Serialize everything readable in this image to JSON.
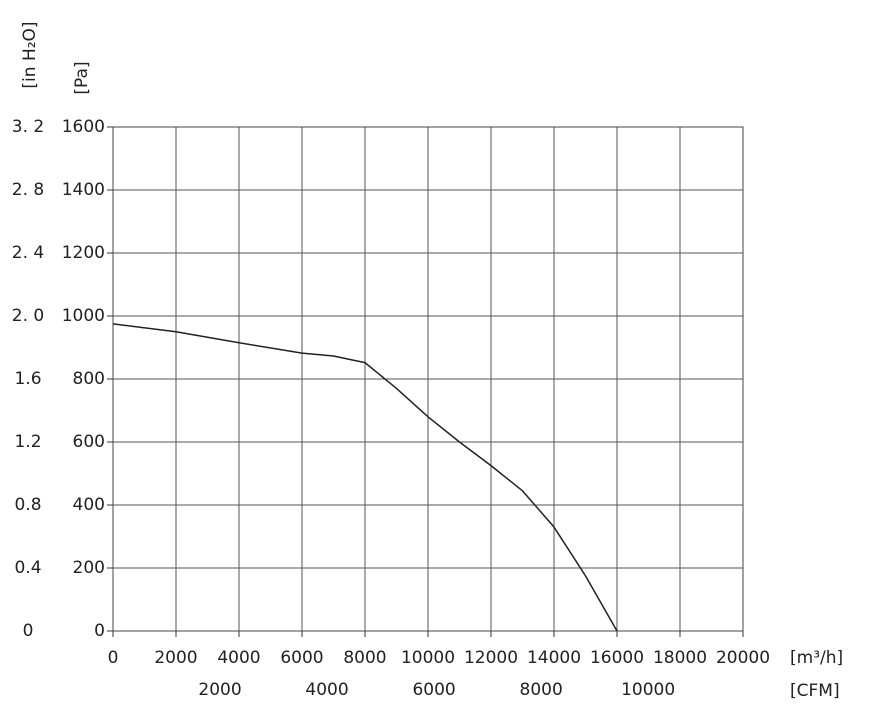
{
  "chart_data": {
    "type": "line",
    "x": [
      0,
      2000,
      4000,
      6000,
      7000,
      8000,
      9000,
      10000,
      11000,
      12000,
      13000,
      14000,
      15000,
      16000
    ],
    "series": [
      {
        "color": "#222222",
        "values": [
          975,
          950,
          915,
          882,
          873,
          852,
          770,
          680,
          600,
          525,
          445,
          330,
          175,
          0
        ]
      }
    ],
    "xlabel": "[m³/h]",
    "ylabel": "[Pa]",
    "x2label": "[CFM]",
    "y2label": "[in H₂O]",
    "xlim": [
      0,
      20000
    ],
    "xticks": [
      0,
      2000,
      4000,
      6000,
      8000,
      10000,
      12000,
      14000,
      16000,
      18000,
      20000
    ],
    "ylim": [
      0,
      1600
    ],
    "yticks": [
      0,
      200,
      400,
      600,
      800,
      1000,
      1200,
      1400,
      1600
    ],
    "x2lim": [
      0,
      11772
    ],
    "x2ticks": [
      2000,
      4000,
      6000,
      8000,
      10000
    ],
    "y2lim": [
      0,
      3.2
    ],
    "y2ticks": [
      0,
      0.4,
      0.8,
      1.2,
      1.6,
      {
        "value": 2.0,
        "label": "2. 0"
      },
      {
        "value": 2.4,
        "label": "2. 4"
      },
      {
        "value": 2.8,
        "label": "2. 8"
      },
      {
        "value": 3.2,
        "label": "3. 2"
      }
    ],
    "grid": true
  }
}
